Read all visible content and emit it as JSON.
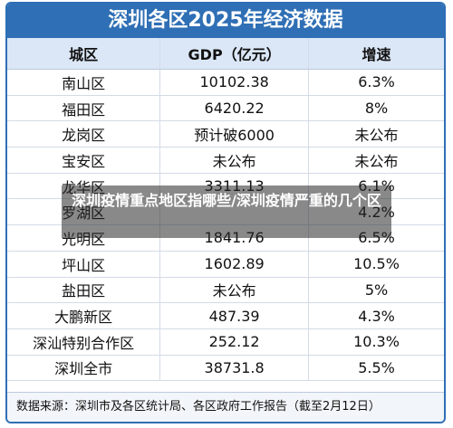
{
  "title": "深圳各区2025年经济数据",
  "table": {
    "headers": [
      "城区",
      "GDP（亿元）",
      "增速"
    ],
    "rows": [
      {
        "district": "南山区",
        "gdp": "10102.38",
        "growth": "6.3%"
      },
      {
        "district": "福田区",
        "gdp": "6420.22",
        "growth": "8%"
      },
      {
        "district": "龙岗区",
        "gdp": "预计破6000",
        "growth": "未公布"
      },
      {
        "district": "宝安区",
        "gdp": "未公布",
        "growth": "未公布"
      },
      {
        "district": "龙华区",
        "gdp": "3311.13",
        "growth": "6.1%"
      },
      {
        "district": "罗湖区",
        "growth": "4.2%"
      },
      {
        "district": "光明区",
        "gdp": "1841.76",
        "growth": "6.5%"
      },
      {
        "district": "坪山区",
        "gdp": "1602.89",
        "growth": "10.5%"
      },
      {
        "district": "盐田区",
        "gdp": "未公布",
        "growth": "5%"
      },
      {
        "district": "大鹏新区",
        "gdp": "487.39",
        "growth": "4.3%"
      },
      {
        "district": "深汕特别合作区",
        "gdp": "252.12",
        "growth": "10.3%"
      },
      {
        "district": "深圳全市",
        "gdp": "38731.8",
        "growth": "5.5%"
      }
    ]
  },
  "source": "数据来源：深圳市及各区统计局、各区政府工作报告（截至2月12日）",
  "overlay": "深圳疫情重点地区指哪些/深圳疫情严重的几个区"
}
